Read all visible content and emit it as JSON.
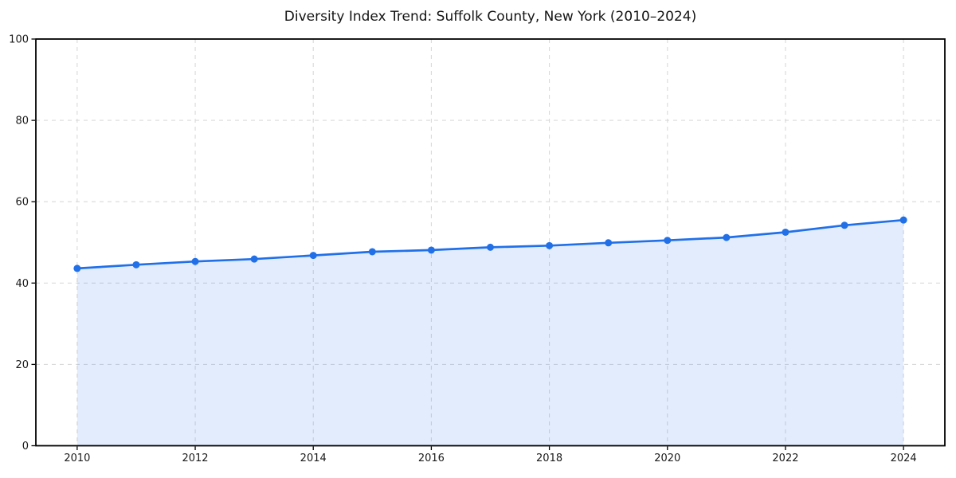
{
  "page": {
    "background": "#ffffff"
  },
  "chart_data": {
    "type": "area",
    "title": "Diversity Index Trend: Suffolk County, New York (2010–2024)",
    "xlabel": "",
    "ylabel": "",
    "x": [
      2010,
      2011,
      2012,
      2013,
      2014,
      2015,
      2016,
      2017,
      2018,
      2019,
      2020,
      2021,
      2022,
      2023,
      2024
    ],
    "series": [
      {
        "name": "Diversity Index",
        "values": [
          43.6,
          44.5,
          45.3,
          45.9,
          46.8,
          47.7,
          48.1,
          48.8,
          49.2,
          49.9,
          50.5,
          51.2,
          52.5,
          54.2,
          55.5
        ]
      }
    ],
    "xlim": [
      2009.3,
      2024.7
    ],
    "ylim": [
      0,
      100
    ],
    "xticks": [
      2010,
      2012,
      2014,
      2016,
      2018,
      2020,
      2022,
      2024
    ],
    "yticks": [
      0,
      20,
      40,
      60,
      80,
      100
    ],
    "grid": true,
    "grid_style": "dashed",
    "legend_position": "none",
    "marker": "circle",
    "colors": {
      "line": "#2170e8",
      "marker": "#2170e8",
      "fill": "rgba(33,112,232,0.13)",
      "grid": "#d9d9d9",
      "spine": "#000000",
      "tick": "#000000",
      "text": "#1a1a1a",
      "title": "#141414",
      "background": "#ffffff"
    }
  }
}
